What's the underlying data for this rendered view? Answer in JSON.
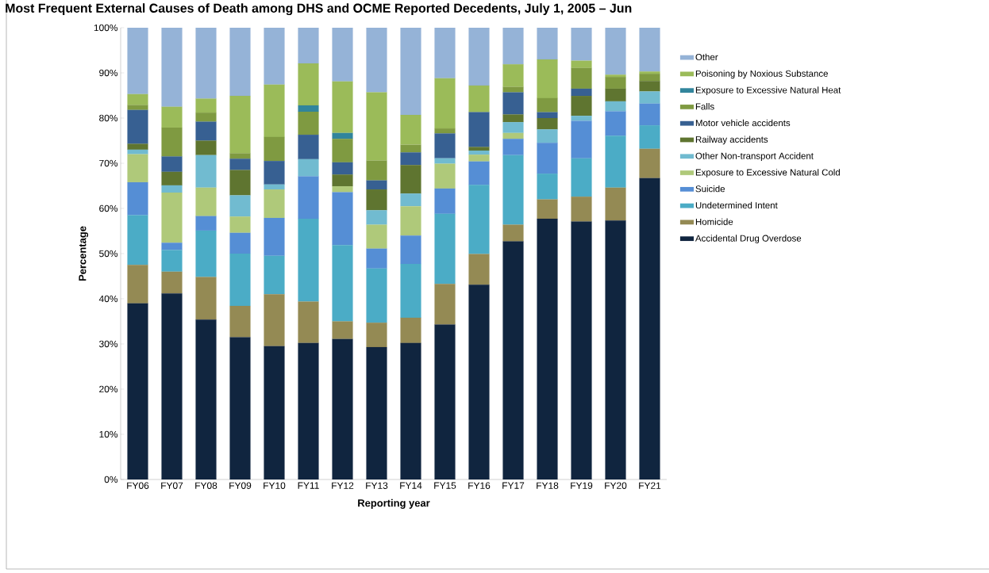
{
  "chart_data": {
    "type": "bar",
    "stacked": true,
    "title": "Most Frequent External Causes of Death among DHS and OCME Reported Decedents, July 1, 2005 – Jun",
    "xlabel": "Reporting year",
    "ylabel": "Percentage",
    "categories": [
      "FY06",
      "FY07",
      "FY08",
      "FY09",
      "FY10",
      "FY11",
      "FY12",
      "FY13",
      "FY14",
      "FY15",
      "FY16",
      "FY17",
      "FY18",
      "FY19",
      "FY20",
      "FY21"
    ],
    "ylim": [
      0,
      100
    ],
    "yticks": [
      {
        "value": 0,
        "label": "0%"
      },
      {
        "value": 10,
        "label": "10%"
      },
      {
        "value": 20,
        "label": "20%"
      },
      {
        "value": 30,
        "label": "30%"
      },
      {
        "value": 40,
        "label": "40%"
      },
      {
        "value": 50,
        "label": "50%"
      },
      {
        "value": 60,
        "label": "60%"
      },
      {
        "value": 70,
        "label": "70%"
      },
      {
        "value": 80,
        "label": "80%"
      },
      {
        "value": 90,
        "label": "90%"
      },
      {
        "value": 100,
        "label": "100%"
      }
    ],
    "legend": "right",
    "grid": false,
    "series": [
      {
        "name": "Accidental Drug Overdose",
        "color": "#10253f",
        "values": [
          39,
          41.2,
          35.4,
          31.5,
          29.5,
          30.2,
          31.1,
          29.3,
          30.2,
          34.3,
          43.1,
          52.7,
          57.7,
          57.1,
          57.3,
          66.7
        ]
      },
      {
        "name": "Homicide",
        "color": "#948a54",
        "values": [
          8.5,
          4.8,
          9.4,
          6.9,
          11.5,
          9.2,
          3.9,
          5.4,
          5.6,
          9.0,
          6.8,
          3.7,
          4.3,
          5.5,
          7.3,
          6.5
        ]
      },
      {
        "name": "Undetermined Intent",
        "color": "#4bacc6",
        "values": [
          11,
          4.8,
          10.3,
          11.6,
          8.5,
          18.3,
          16.9,
          12.0,
          11.9,
          15.5,
          15.3,
          15.4,
          5.7,
          8.5,
          11.5,
          5.2
        ]
      },
      {
        "name": "Suicide",
        "color": "#558ed5",
        "values": [
          7.3,
          1.6,
          3.2,
          4.6,
          8.4,
          9.4,
          11.7,
          4.4,
          6.3,
          5.6,
          5.2,
          3.6,
          6.8,
          8.3,
          5.4,
          4.8
        ]
      },
      {
        "name": "Exposure to Excessive Natural Cold",
        "color": "#afc97a",
        "values": [
          6.2,
          11.1,
          6.3,
          3.6,
          6.3,
          0,
          1.3,
          5.3,
          6.5,
          5.5,
          1.5,
          1.3,
          0,
          0,
          0,
          0
        ]
      },
      {
        "name": "Other Non-transport Accident",
        "color": "#71bbd0",
        "values": [
          1,
          1.6,
          7.2,
          4.7,
          1.1,
          3.8,
          0,
          3.2,
          2.8,
          1.2,
          0.9,
          2.4,
          3.0,
          1.1,
          2.2,
          2.7
        ]
      },
      {
        "name": "Railway accidents",
        "color": "#5f7530",
        "values": [
          1.3,
          3.0,
          3.2,
          5.6,
          0,
          0,
          2.6,
          4.6,
          6.3,
          0,
          0.8,
          1.7,
          2.5,
          4.4,
          2.8,
          2.3
        ]
      },
      {
        "name": "Motor vehicle accidents",
        "color": "#376092",
        "values": [
          7.5,
          3.4,
          4.2,
          2.5,
          5.2,
          5.4,
          2.7,
          2.0,
          2.8,
          5.5,
          7.7,
          4.9,
          1.3,
          1.6,
          0,
          0
        ]
      },
      {
        "name": "Falls",
        "color": "#7f9a41",
        "values": [
          1.1,
          6.4,
          2.0,
          1.2,
          5.3,
          5.1,
          5.2,
          4.4,
          1.7,
          1.1,
          0,
          1.2,
          3.1,
          4.6,
          2.6,
          1.6
        ]
      },
      {
        "name": "Exposure to Excessive Natural Heat",
        "color": "#31859c",
        "values": [
          0,
          0,
          0,
          0,
          0,
          1.4,
          1.3,
          0,
          0,
          0,
          0,
          0,
          0,
          0,
          0,
          0
        ]
      },
      {
        "name": "Poisoning by Noxious Substance",
        "color": "#9bbb59",
        "values": [
          2.4,
          4.6,
          3.1,
          12.7,
          11.6,
          9.3,
          11.4,
          15.1,
          6.6,
          11.1,
          5.9,
          5.0,
          8.6,
          1.6,
          0.5,
          0.5
        ]
      },
      {
        "name": "Other",
        "color": "#95b3d7",
        "values": [
          14.7,
          17.5,
          15.7,
          15.1,
          12.6,
          7.9,
          11.9,
          14.3,
          19.3,
          11.2,
          12.8,
          8.1,
          7.0,
          7.3,
          10.4,
          10.0
        ]
      }
    ]
  }
}
